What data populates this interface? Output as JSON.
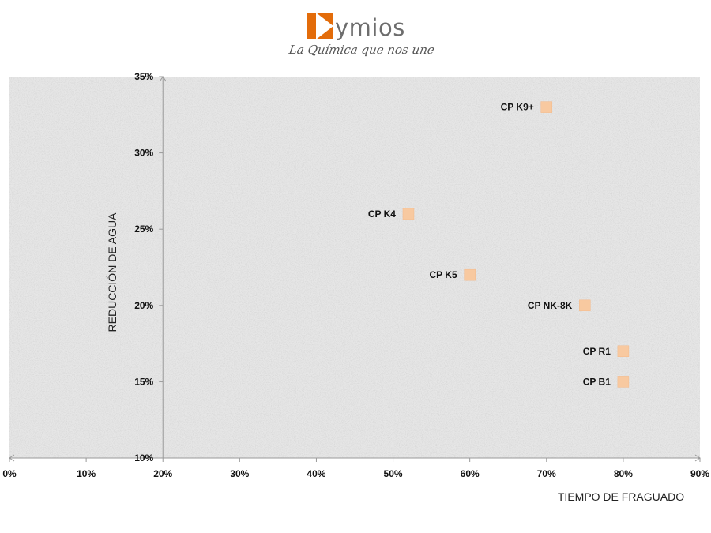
{
  "logo": {
    "word": "ymios",
    "tagline": "La Química que nos une"
  },
  "colors": {
    "marker": "#f8c9a0",
    "background_texture": "#e6e6e6",
    "axis": "#999999",
    "logo_accent": "#e36c0a"
  },
  "chart_data": {
    "type": "scatter",
    "title": "",
    "xlabel": "TIEMPO DE FRAGUADO",
    "ylabel": "REDUCCIÓN DE AGUA",
    "xlim": [
      0,
      90
    ],
    "ylim": [
      10,
      35
    ],
    "x_ticks": [
      0,
      10,
      20,
      30,
      40,
      50,
      60,
      70,
      80,
      90
    ],
    "y_ticks": [
      10,
      15,
      20,
      25,
      30,
      35
    ],
    "x_tick_labels": [
      "0%",
      "10%",
      "20%",
      "30%",
      "40%",
      "50%",
      "60%",
      "70%",
      "80%",
      "90%"
    ],
    "y_tick_labels": [
      "10%",
      "15%",
      "20%",
      "25%",
      "30%",
      "35%"
    ],
    "y_axis_crosses_x_at": 20,
    "grid": false,
    "legend": "none",
    "points": [
      {
        "label": "CP K9+",
        "x": 70,
        "y": 33
      },
      {
        "label": "CP K4",
        "x": 52,
        "y": 26
      },
      {
        "label": "CP K5",
        "x": 60,
        "y": 22
      },
      {
        "label": "CP NK-8K",
        "x": 75,
        "y": 20
      },
      {
        "label": "CP R1",
        "x": 80,
        "y": 17
      },
      {
        "label": "CP B1",
        "x": 80,
        "y": 15
      }
    ]
  }
}
